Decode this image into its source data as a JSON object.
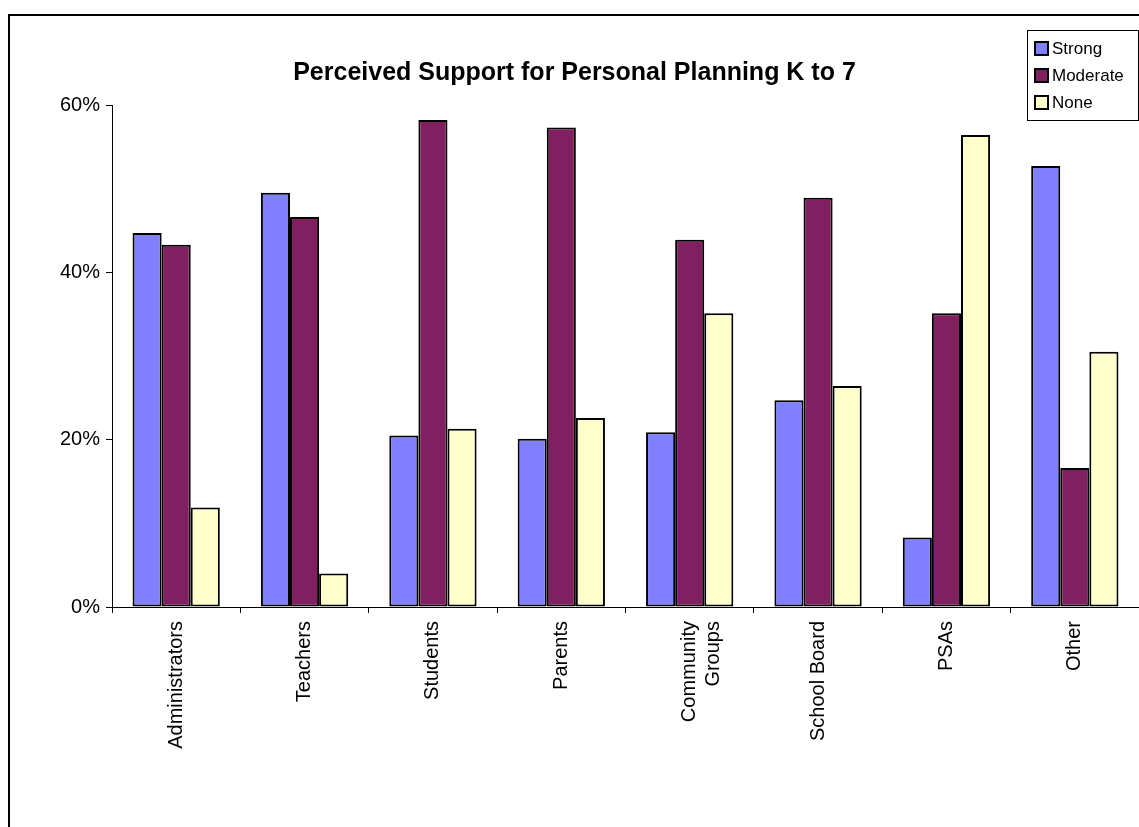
{
  "chart_data": {
    "type": "bar",
    "title": "Perceived Support for Personal Planning K to 7",
    "categories": [
      "Administrators",
      "Teachers",
      "Students",
      "Parents",
      "Community Groups",
      "School Board",
      "PSAs",
      "Other"
    ],
    "series": [
      {
        "name": "Strong",
        "color": "#8080ff",
        "values": [
          44.7,
          49.5,
          20.5,
          20.1,
          20.9,
          24.7,
          8.3,
          52.7
        ]
      },
      {
        "name": "Moderate",
        "color": "#802060",
        "values": [
          43.3,
          46.6,
          58.2,
          57.3,
          43.9,
          48.9,
          35.1,
          16.6
        ]
      },
      {
        "name": "None",
        "color": "#ffffcc",
        "values": [
          11.9,
          4.0,
          21.3,
          22.6,
          35.1,
          26.4,
          56.4,
          30.5
        ]
      }
    ],
    "ylim": [
      0,
      60
    ],
    "yticks": [
      {
        "value": 0,
        "label": "0%"
      },
      {
        "value": 20,
        "label": "20%"
      },
      {
        "value": 40,
        "label": "40%"
      },
      {
        "value": 60,
        "label": "60%"
      }
    ],
    "grid": false,
    "legend": "top right"
  }
}
